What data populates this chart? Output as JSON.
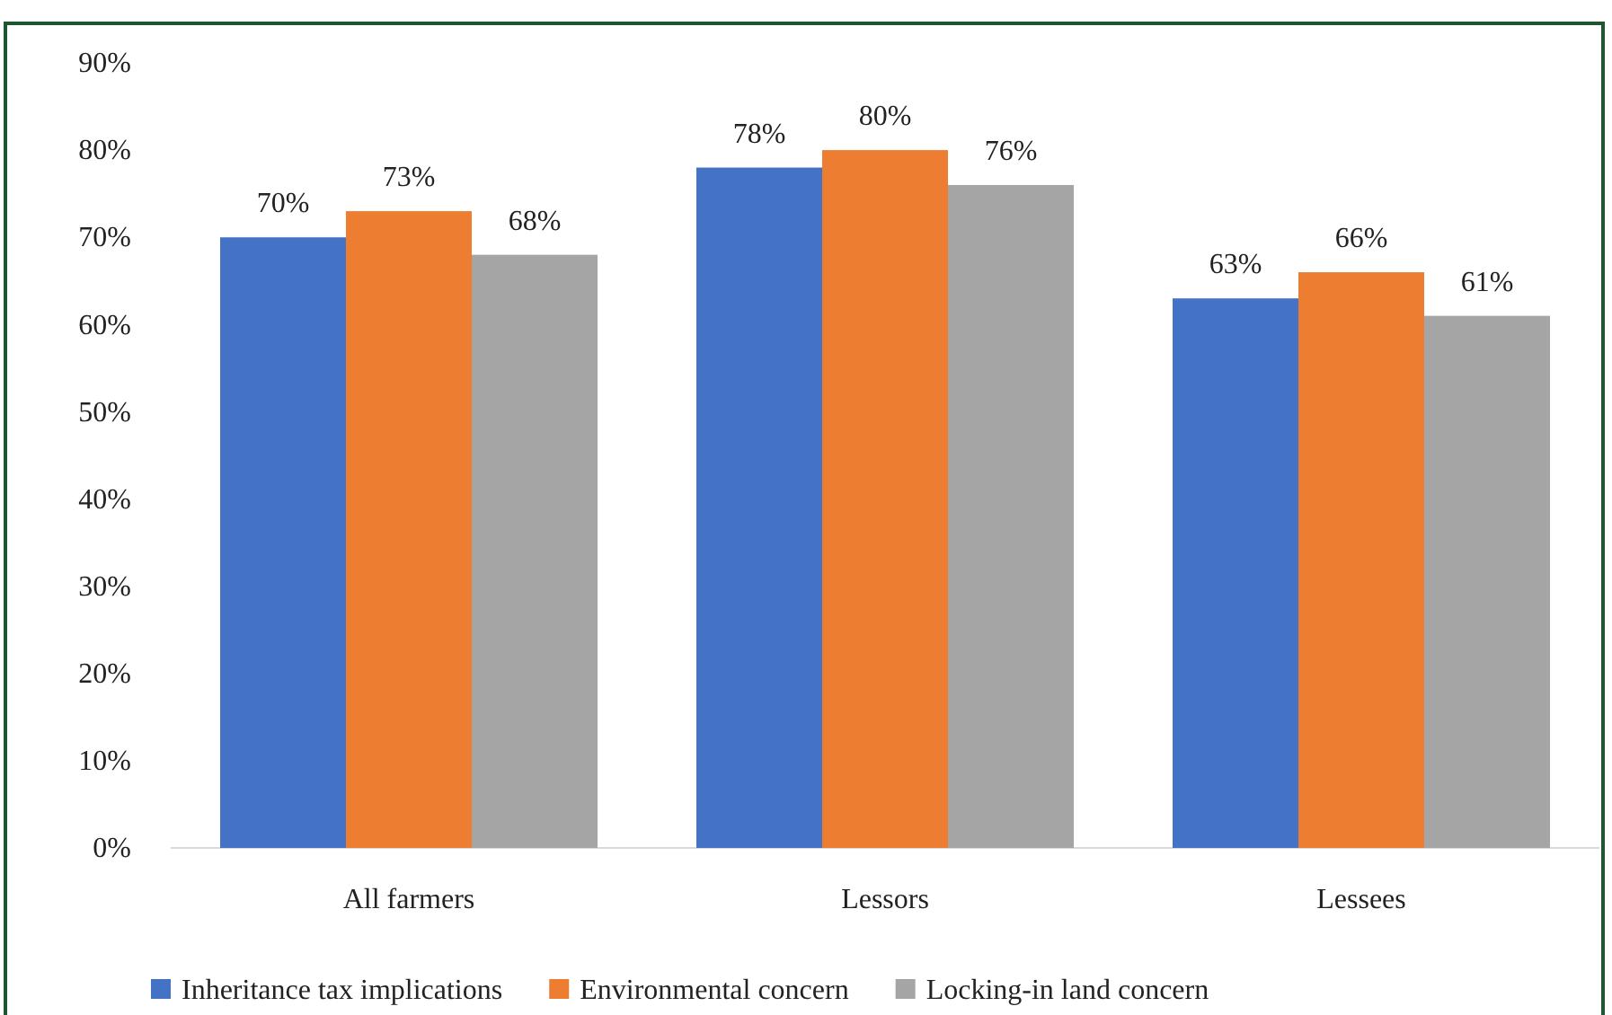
{
  "chart_data": {
    "type": "bar",
    "categories": [
      "All farmers",
      "Lessors",
      "Lessees"
    ],
    "series": [
      {
        "name": "Inheritance tax implications",
        "color": "#4472c4",
        "values": [
          70,
          78,
          63
        ],
        "value_labels": [
          "70%",
          "78%",
          "63%"
        ]
      },
      {
        "name": "Environmental concern",
        "color": "#ed7d31",
        "values": [
          73,
          80,
          66
        ],
        "value_labels": [
          "73%",
          "80%",
          "66%"
        ]
      },
      {
        "name": "Locking-in land concern",
        "color": "#a5a5a5",
        "values": [
          68,
          76,
          61
        ],
        "value_labels": [
          "68%",
          "76%",
          "61%"
        ]
      }
    ],
    "ylim": [
      0,
      90
    ],
    "yticks": [
      {
        "value": 0,
        "label": "0%"
      },
      {
        "value": 10,
        "label": "10%"
      },
      {
        "value": 20,
        "label": "20%"
      },
      {
        "value": 30,
        "label": "30%"
      },
      {
        "value": 40,
        "label": "40%"
      },
      {
        "value": 50,
        "label": "50%"
      },
      {
        "value": 60,
        "label": "60%"
      },
      {
        "value": 70,
        "label": "70%"
      },
      {
        "value": 80,
        "label": "80%"
      },
      {
        "value": 90,
        "label": "90%"
      }
    ],
    "grid": false,
    "legend": "bottom"
  }
}
